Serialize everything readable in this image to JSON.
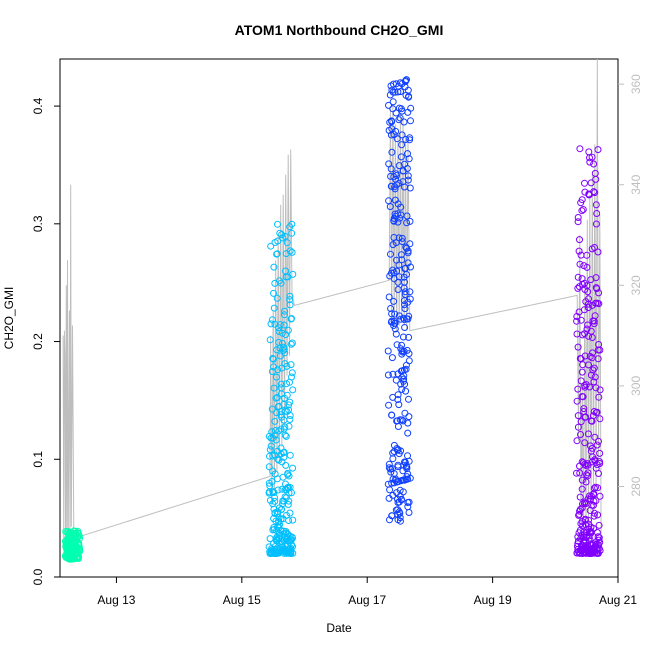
{
  "chart_data": {
    "type": "scatter",
    "title": "ATOM1 Northbound CH2O_GMI",
    "xlabel": "Date",
    "ylabel": "CH2O_GMI",
    "x_unit": "day of August (year not shown)",
    "xlim": [
      12.1,
      21.0
    ],
    "ylim": [
      0.0,
      0.44
    ],
    "y2lim": [
      262,
      365
    ],
    "x_ticks": [
      {
        "value": 13,
        "label": "Aug 13"
      },
      {
        "value": 15,
        "label": "Aug 15"
      },
      {
        "value": 17,
        "label": "Aug 17"
      },
      {
        "value": 19,
        "label": "Aug 19"
      },
      {
        "value": 21,
        "label": "Aug 21"
      }
    ],
    "y_ticks": [
      0.0,
      0.1,
      0.2,
      0.3,
      0.4
    ],
    "y_tick_labels": [
      "0.0",
      "0.1",
      "0.2",
      "0.3",
      "0.4"
    ],
    "y2_ticks": [
      280,
      300,
      320,
      340,
      360
    ],
    "y2_tick_labels": [
      "280",
      "300",
      "320",
      "340",
      "360"
    ],
    "grid": false,
    "colors": {
      "flight1": "#00ffb0",
      "flight2": "#00bfff",
      "flight3": "#1040ff",
      "flight4": "#8000ff",
      "secondary_line": "#bebebe"
    },
    "series": [
      {
        "color_key": "flight1",
        "x": [
          12.2,
          12.22,
          12.24,
          12.26,
          12.28,
          12.3,
          12.32,
          12.34,
          12.36,
          12.38,
          12.4
        ],
        "y_range": [
          0.015,
          0.04
        ],
        "y_mean": 0.027
      },
      {
        "color_key": "flight2",
        "x": [
          15.45,
          15.48,
          15.5,
          15.52,
          15.54,
          15.56,
          15.58,
          15.6,
          15.62,
          15.64,
          15.66,
          15.68,
          15.7,
          15.72,
          15.74,
          15.76,
          15.78,
          15.8
        ],
        "y_range": [
          0.02,
          0.305
        ]
      },
      {
        "color_key": "flight3",
        "x": [
          17.35,
          17.38,
          17.4,
          17.42,
          17.44,
          17.46,
          17.48,
          17.5,
          17.52,
          17.54,
          17.56,
          17.58,
          17.6,
          17.62,
          17.64,
          17.66,
          17.68
        ],
        "y_range": [
          0.047,
          0.425
        ]
      },
      {
        "color_key": "flight4",
        "x": [
          20.35,
          20.38,
          20.4,
          20.42,
          20.44,
          20.46,
          20.48,
          20.5,
          20.52,
          20.54,
          20.56,
          20.58,
          20.6,
          20.62,
          20.64,
          20.66,
          20.68,
          20.7
        ],
        "y_range": [
          0.02,
          0.365
        ]
      }
    ],
    "secondary_line": {
      "axis": "right",
      "points": [
        [
          12.15,
          310
        ],
        [
          12.16,
          268
        ],
        [
          12.17,
          311
        ],
        [
          12.18,
          306
        ],
        [
          12.19,
          268
        ],
        [
          12.2,
          320
        ],
        [
          12.21,
          269
        ],
        [
          12.22,
          325
        ],
        [
          12.23,
          268
        ],
        [
          12.25,
          315
        ],
        [
          12.26,
          270
        ],
        [
          12.27,
          340
        ],
        [
          12.28,
          272
        ],
        [
          12.3,
          312
        ],
        [
          12.32,
          270
        ],
        [
          12.36,
          269
        ],
        [
          12.4,
          270
        ],
        [
          15.45,
          282
        ],
        [
          15.46,
          310
        ],
        [
          15.48,
          276
        ],
        [
          15.5,
          315
        ],
        [
          15.52,
          279
        ],
        [
          15.54,
          325
        ],
        [
          15.56,
          283
        ],
        [
          15.58,
          330
        ],
        [
          15.6,
          285
        ],
        [
          15.62,
          336
        ],
        [
          15.64,
          288
        ],
        [
          15.66,
          338
        ],
        [
          15.68,
          292
        ],
        [
          15.7,
          342
        ],
        [
          15.72,
          302
        ],
        [
          15.74,
          346
        ],
        [
          15.76,
          306
        ],
        [
          15.78,
          347
        ],
        [
          15.8,
          318
        ],
        [
          15.84,
          316
        ],
        [
          17.35,
          321
        ],
        [
          17.37,
          355
        ],
        [
          17.39,
          312
        ],
        [
          17.41,
          356
        ],
        [
          17.43,
          313
        ],
        [
          17.45,
          352
        ],
        [
          17.47,
          311
        ],
        [
          17.49,
          350
        ],
        [
          17.51,
          312
        ],
        [
          17.53,
          354
        ],
        [
          17.55,
          313
        ],
        [
          17.57,
          353
        ],
        [
          17.59,
          312
        ],
        [
          17.61,
          350
        ],
        [
          17.63,
          311
        ],
        [
          17.65,
          349
        ],
        [
          17.68,
          311
        ],
        [
          20.35,
          318
        ],
        [
          20.37,
          289
        ],
        [
          20.39,
          330
        ],
        [
          20.41,
          272
        ],
        [
          20.43,
          300
        ],
        [
          20.45,
          270
        ],
        [
          20.47,
          320
        ],
        [
          20.49,
          271
        ],
        [
          20.51,
          333
        ],
        [
          20.53,
          272
        ],
        [
          20.55,
          338
        ],
        [
          20.57,
          275
        ],
        [
          20.59,
          342
        ],
        [
          20.61,
          276
        ],
        [
          20.63,
          348
        ],
        [
          20.65,
          280
        ],
        [
          20.67,
          365
        ],
        [
          20.69,
          285
        ],
        [
          20.71,
          334
        ],
        [
          20.73,
          270
        ]
      ]
    }
  }
}
